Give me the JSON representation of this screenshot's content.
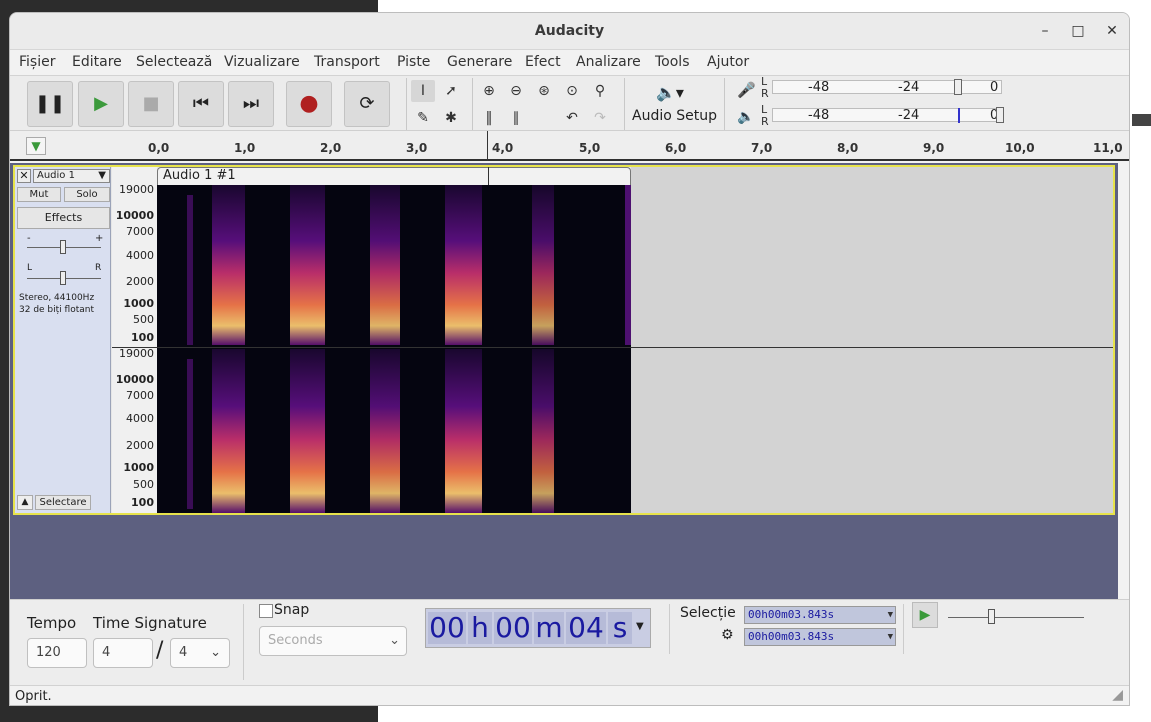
{
  "window": {
    "title": "Audacity"
  },
  "menu": [
    "Fișier",
    "Editare",
    "Selectează",
    "Vizualizare",
    "Transport",
    "Piste",
    "Generare",
    "Efect",
    "Analizare",
    "Tools",
    "Ajutor"
  ],
  "audio_setup": {
    "label": "Audio Setup"
  },
  "meters": {
    "record_ticks": [
      "-48",
      "-24",
      "0"
    ],
    "play_ticks": [
      "-48",
      "-24",
      "0"
    ],
    "channel_l": "L",
    "channel_r": "R"
  },
  "ruler": {
    "ticks": [
      "0,0",
      "1,0",
      "2,0",
      "3,0",
      "4,0",
      "5,0",
      "6,0",
      "7,0",
      "8,0",
      "9,0",
      "10,0",
      "11,0"
    ]
  },
  "track": {
    "name": "Audio 1",
    "clip_name": "Audio 1 #1",
    "mute_label": "Mut",
    "solo_label": "Solo",
    "effects_label": "Effects",
    "gain_minus": "-",
    "gain_plus": "+",
    "pan_left": "L",
    "pan_right": "R",
    "info_line1": "Stereo, 44100Hz",
    "info_line2": "32 de biți flotant",
    "select_label": "Selectare",
    "scale_labels": [
      "19000",
      "10000",
      "7000",
      "4000",
      "2000",
      "1000",
      "500",
      "100"
    ]
  },
  "bottom": {
    "tempo_label": "Tempo",
    "tempo_value": "120",
    "time_sig_label": "Time Signature",
    "time_sig_num": "4",
    "time_sig_den": "4",
    "time_sig_slash": "/",
    "snap_label": "Snap",
    "snap_unit": "Seconds",
    "time_display": {
      "h": "00",
      "h_unit": "h",
      "m": "00",
      "m_unit": "m",
      "s": "04",
      "s_unit": "s"
    },
    "selection_label": "Selecție",
    "selection_start": "00h00m03.843s",
    "selection_end": "00h00m03.843s"
  },
  "status": {
    "text": "Oprit."
  }
}
